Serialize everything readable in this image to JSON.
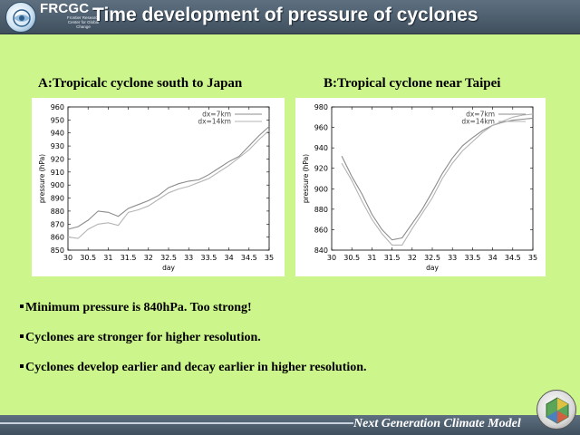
{
  "header": {
    "org_name": "FRCGC",
    "org_subtitle": "Frontier Research Center for Global Change",
    "title": "Time development of pressure of cyclones"
  },
  "panels": {
    "a_title": "A:Tropicalc cyclone south to Japan",
    "b_title": "B:Tropical cyclone near Taipei"
  },
  "chart_data": [
    {
      "type": "line",
      "title": "A:Tropicalc cyclone south to Japan",
      "xlabel": "day",
      "ylabel": "pressure (hPa)",
      "xlim": [
        30,
        35
      ],
      "ylim": [
        850,
        960
      ],
      "xticks": [
        "30",
        "30.5",
        "31",
        "31.5",
        "32",
        "32.5",
        "33",
        "33.5",
        "34",
        "34.5",
        "35"
      ],
      "yticks": [
        "850",
        "860",
        "870",
        "880",
        "890",
        "900",
        "910",
        "920",
        "930",
        "940",
        "950",
        "960"
      ],
      "series": [
        {
          "name": "dx=7km",
          "x": [
            30.0,
            30.25,
            30.5,
            30.75,
            31.0,
            31.25,
            31.5,
            31.75,
            32.0,
            32.25,
            32.5,
            32.75,
            33.0,
            33.25,
            33.5,
            33.75,
            34.0,
            34.25,
            34.5,
            34.75,
            35.0
          ],
          "values": [
            866,
            868,
            873,
            880,
            879,
            876,
            882,
            885,
            888,
            892,
            898,
            901,
            903,
            904,
            908,
            913,
            918,
            922,
            930,
            938,
            945
          ]
        },
        {
          "name": "dx=14km",
          "x": [
            30.0,
            30.25,
            30.5,
            30.75,
            31.0,
            31.25,
            31.5,
            31.75,
            32.0,
            32.25,
            32.5,
            32.75,
            33.0,
            33.25,
            33.5,
            33.75,
            34.0,
            34.25,
            34.5,
            34.75,
            35.0
          ],
          "values": [
            860,
            859,
            866,
            870,
            871,
            869,
            879,
            881,
            884,
            889,
            894,
            897,
            899,
            902,
            905,
            910,
            915,
            921,
            927,
            935,
            942
          ]
        }
      ]
    },
    {
      "type": "line",
      "title": "B:Tropical cyclone near Taipei",
      "xlabel": "day",
      "ylabel": "pressure (hPa)",
      "xlim": [
        30,
        35
      ],
      "ylim": [
        840,
        980
      ],
      "xticks": [
        "30",
        "30.5",
        "31",
        "31.5",
        "32",
        "32.5",
        "33",
        "33.5",
        "34",
        "34.5",
        "35"
      ],
      "yticks": [
        "840",
        "860",
        "880",
        "900",
        "920",
        "940",
        "960",
        "980"
      ],
      "series": [
        {
          "name": "dx=7km",
          "x": [
            30.25,
            30.5,
            30.75,
            31.0,
            31.25,
            31.5,
            31.75,
            32.0,
            32.25,
            32.5,
            32.75,
            33.0,
            33.25,
            33.5,
            33.75,
            34.0,
            34.25,
            34.5,
            34.75,
            35.0
          ],
          "values": [
            932,
            912,
            895,
            875,
            860,
            850,
            852,
            866,
            880,
            897,
            915,
            930,
            942,
            950,
            957,
            962,
            965,
            967,
            968,
            969
          ]
        },
        {
          "name": "dx=14km",
          "x": [
            30.25,
            30.5,
            30.75,
            31.0,
            31.25,
            31.5,
            31.75,
            32.0,
            32.25,
            32.5,
            32.75,
            33.0,
            33.25,
            33.5,
            33.75,
            34.0,
            34.25,
            34.5,
            34.75,
            35.0
          ],
          "values": [
            925,
            908,
            888,
            870,
            856,
            845,
            845,
            861,
            876,
            891,
            910,
            925,
            937,
            946,
            955,
            962,
            966,
            970,
            972,
            973
          ]
        }
      ]
    }
  ],
  "bullets": [
    "Minimum pressure is 840hPa. Too strong!",
    "Cyclones are stronger for higher resolution.",
    "Cyclones develop earlier and decay earlier in higher resolution."
  ],
  "footer": {
    "text": "Next Generation Climate Model"
  },
  "colors": {
    "background": "#ccf58c",
    "header_bar": "#4e5f6f",
    "line_7km": "#8c8c8c",
    "line_14km": "#b4b4b4"
  },
  "icons": {
    "logo": "frcgc-logo-icon",
    "emblem": "climate-model-emblem-icon"
  }
}
